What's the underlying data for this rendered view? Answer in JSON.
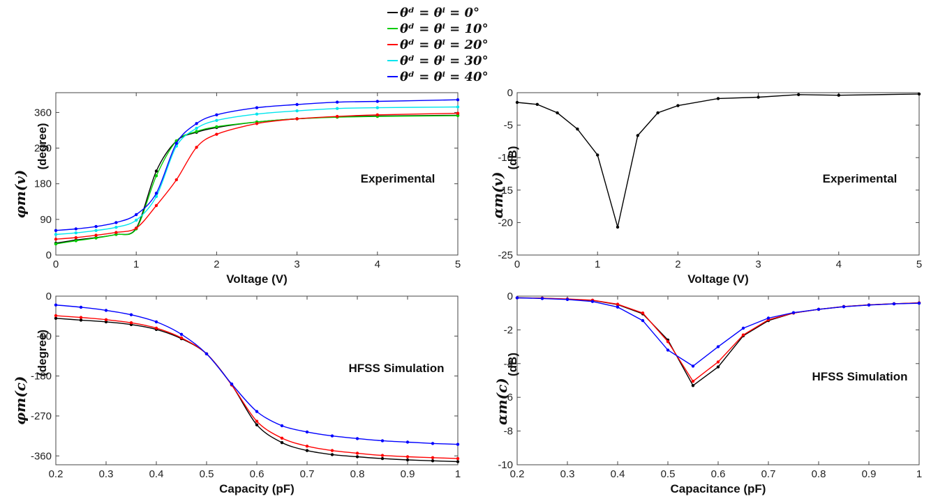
{
  "legend": {
    "entries": [
      {
        "label": "θᵈ = θⁱ = 0°",
        "color": "#000000"
      },
      {
        "label": "θᵈ = θⁱ = 10°",
        "color": "#00cc00"
      },
      {
        "label": "θᵈ = θⁱ = 20°",
        "color": "#ff0000"
      },
      {
        "label": "θᵈ = θⁱ = 30°",
        "color": "#00e5ee"
      },
      {
        "label": "θᵈ = θⁱ = 40°",
        "color": "#0000ff"
      }
    ]
  },
  "chart_data": [
    {
      "type": "line",
      "id": "phase-exp",
      "annotation": "Experimental",
      "xlabel": "Voltage (V)",
      "ylabel": "φm(v)",
      "ylabel_unit": "(degree)",
      "xlim": [
        0,
        5
      ],
      "ylim": [
        0,
        410
      ],
      "xticks": [
        0,
        1,
        2,
        3,
        4,
        5
      ],
      "yticks": [
        0,
        90,
        180,
        270,
        360
      ],
      "grid": false,
      "x": [
        0,
        0.25,
        0.5,
        0.75,
        1,
        1.25,
        1.5,
        1.75,
        2,
        2.5,
        3,
        3.5,
        4,
        5
      ],
      "series": [
        {
          "name": "θᵈ = θⁱ = 0°",
          "color": "#000000",
          "values": [
            30,
            38,
            44,
            52,
            68,
            212,
            288,
            310,
            322,
            336,
            344,
            349,
            351,
            353
          ]
        },
        {
          "name": "θᵈ = θⁱ = 10°",
          "color": "#00cc00",
          "values": [
            28,
            36,
            43,
            52,
            66,
            200,
            288,
            312,
            324,
            336,
            344,
            348,
            350,
            352
          ]
        },
        {
          "name": "θᵈ = θⁱ = 20°",
          "color": "#ff0000",
          "values": [
            40,
            44,
            50,
            57,
            68,
            125,
            190,
            272,
            305,
            332,
            344,
            350,
            354,
            358
          ]
        },
        {
          "name": "θᵈ = θⁱ = 30°",
          "color": "#00e5ee",
          "values": [
            52,
            56,
            62,
            70,
            88,
            148,
            275,
            320,
            340,
            356,
            364,
            370,
            372,
            374
          ]
        },
        {
          "name": "θᵈ = θⁱ = 40°",
          "color": "#0000ff",
          "values": [
            62,
            66,
            72,
            82,
            102,
            156,
            282,
            332,
            354,
            372,
            380,
            386,
            388,
            392
          ]
        }
      ]
    },
    {
      "type": "line",
      "id": "amp-exp",
      "annotation": "Experimental",
      "xlabel": "Voltage (V)",
      "ylabel": "αm(v)",
      "ylabel_unit": "(dB)",
      "xlim": [
        0,
        5
      ],
      "ylim": [
        -25,
        0
      ],
      "xticks": [
        0,
        1,
        2,
        3,
        4,
        5
      ],
      "yticks": [
        0,
        -5,
        -10,
        -15,
        -20,
        -25
      ],
      "grid": false,
      "x": [
        0,
        0.25,
        0.5,
        0.75,
        1,
        1.25,
        1.5,
        1.75,
        2,
        2.5,
        3,
        3.5,
        4,
        5
      ],
      "series": [
        {
          "name": "θᵈ = θⁱ = 0°",
          "color": "#000000",
          "values": [
            -1.5,
            -1.8,
            -3.1,
            -5.6,
            -9.6,
            -20.7,
            -6.6,
            -3.1,
            -2.0,
            -0.9,
            -0.7,
            -0.3,
            -0.4,
            -0.2
          ]
        }
      ]
    },
    {
      "type": "line",
      "id": "phase-sim",
      "annotation": "HFSS Simulation",
      "xlabel": "Capacity (pF)",
      "ylabel": "φm(c)",
      "ylabel_unit": "(degree)",
      "xlim": [
        0.2,
        1
      ],
      "ylim": [
        -380,
        0
      ],
      "xticks": [
        0.2,
        0.3,
        0.4,
        0.5,
        0.6,
        0.7,
        0.8,
        0.9,
        1
      ],
      "yticks": [
        0,
        -90,
        -180,
        -270,
        -360
      ],
      "grid": false,
      "x": [
        0.2,
        0.25,
        0.3,
        0.35,
        0.4,
        0.45,
        0.5,
        0.55,
        0.6,
        0.65,
        0.7,
        0.75,
        0.8,
        0.85,
        0.9,
        0.95,
        1
      ],
      "series": [
        {
          "name": "θᵈ = θⁱ = 0°",
          "color": "#000000",
          "values": [
            -50,
            -54,
            -58,
            -64,
            -75,
            -96,
            -130,
            -200,
            -290,
            -330,
            -348,
            -357,
            -362,
            -366,
            -369,
            -371,
            -373
          ]
        },
        {
          "name": "θᵈ = θⁱ = 20°",
          "color": "#ff0000",
          "values": [
            -44,
            -48,
            -53,
            -60,
            -72,
            -94,
            -130,
            -200,
            -282,
            -320,
            -338,
            -348,
            -354,
            -359,
            -362,
            -364,
            -366
          ]
        },
        {
          "name": "θᵈ = θⁱ = 40°",
          "color": "#0000ff",
          "values": [
            -20,
            -25,
            -32,
            -42,
            -58,
            -86,
            -130,
            -198,
            -260,
            -292,
            -306,
            -315,
            -321,
            -326,
            -329,
            -332,
            -334
          ]
        }
      ]
    },
    {
      "type": "line",
      "id": "amp-sim",
      "annotation": "HFSS Simulation",
      "xlabel": "Capacitance (pF)",
      "ylabel": "αm(c)",
      "ylabel_unit": "(dB)",
      "xlim": [
        0.2,
        1
      ],
      "ylim": [
        -10,
        0
      ],
      "xticks": [
        0.2,
        0.3,
        0.4,
        0.5,
        0.6,
        0.7,
        0.8,
        0.9,
        1
      ],
      "yticks": [
        0,
        -2,
        -4,
        -6,
        -8,
        -10
      ],
      "grid": false,
      "x": [
        0.2,
        0.25,
        0.3,
        0.35,
        0.4,
        0.45,
        0.5,
        0.55,
        0.6,
        0.65,
        0.7,
        0.75,
        0.8,
        0.85,
        0.9,
        0.95,
        1
      ],
      "series": [
        {
          "name": "θᵈ = θⁱ = 0°",
          "color": "#000000",
          "values": [
            -0.1,
            -0.12,
            -0.18,
            -0.25,
            -0.5,
            -1.05,
            -2.6,
            -5.3,
            -4.2,
            -2.35,
            -1.45,
            -1.0,
            -0.78,
            -0.62,
            -0.52,
            -0.45,
            -0.4
          ]
        },
        {
          "name": "θᵈ = θⁱ = 20°",
          "color": "#ff0000",
          "values": [
            -0.1,
            -0.12,
            -0.17,
            -0.24,
            -0.48,
            -1.0,
            -2.7,
            -5.05,
            -3.9,
            -2.3,
            -1.4,
            -1.0,
            -0.78,
            -0.62,
            -0.52,
            -0.45,
            -0.4
          ]
        },
        {
          "name": "θᵈ = θⁱ = 40°",
          "color": "#0000ff",
          "values": [
            -0.1,
            -0.14,
            -0.2,
            -0.32,
            -0.65,
            -1.45,
            -3.2,
            -4.15,
            -3.0,
            -1.9,
            -1.3,
            -0.98,
            -0.78,
            -0.63,
            -0.53,
            -0.46,
            -0.42
          ]
        }
      ]
    }
  ]
}
